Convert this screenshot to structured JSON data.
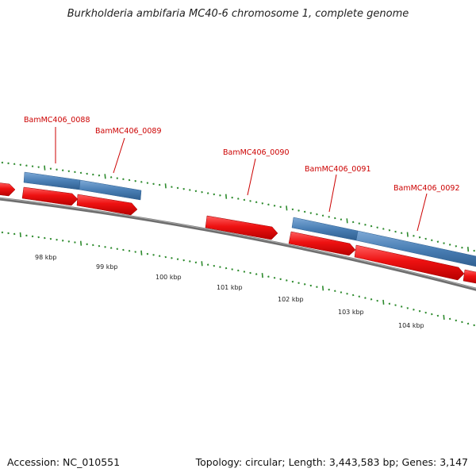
{
  "title": "Burkholderia ambifaria MC40-6 chromosome 1, complete genome",
  "accession_text": "Accession: NC_010551",
  "summary_text": "Topology: circular; Length: 3,443,583 bp; Genes: 3,147",
  "colors": {
    "gene_blue": "#4a7fb5",
    "cds_red": "#ee1111",
    "tick_green": "#2e8b2e",
    "backbone": "#777777",
    "label_red": "#cc0000"
  },
  "kbp_labels": [
    "98 kbp",
    "99 kbp",
    "100 kbp",
    "101 kbp",
    "102 kbp",
    "103 kbp",
    "104 kbp"
  ],
  "gene_labels": [
    "BamMC406_0088",
    "BamMC406_0089",
    "BamMC406_0090",
    "BamMC406_0091",
    "BamMC406_0092"
  ]
}
